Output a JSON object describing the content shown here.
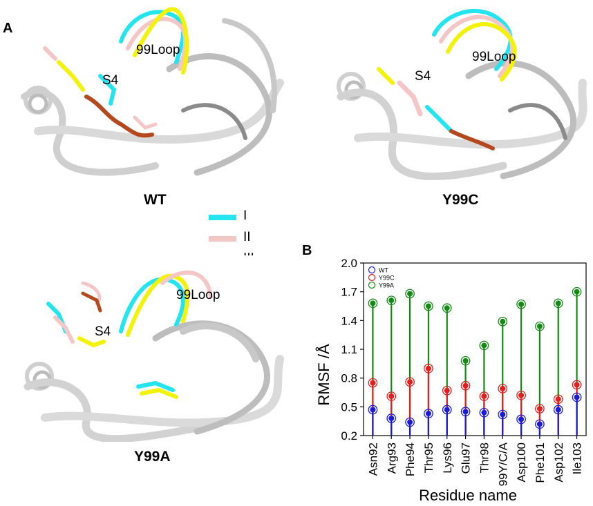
{
  "panels": {
    "a_letter": "A",
    "b_letter": "B"
  },
  "structures": [
    {
      "caption": "WT",
      "s4_label": "S4",
      "loop_label": "99Loop"
    },
    {
      "caption": "Y99C",
      "s4_label": "S4",
      "loop_label": "99Loop"
    },
    {
      "caption": "Y99A",
      "s4_label": "S4",
      "loop_label": "99Loop"
    }
  ],
  "structure_legend": [
    {
      "label": "I",
      "color": "#22e5ef"
    },
    {
      "label": "II",
      "color": "#f5c6c6"
    },
    {
      "label": "III",
      "color": "#f2f20a"
    }
  ],
  "colors": {
    "ribbon": "#d8d8d8",
    "ribbon_dark": "#8a8a8a",
    "ligand": "#b5481c",
    "nitrogen": "#1e2cd6",
    "oxygen": "#d61e1e"
  },
  "chart_data": {
    "type": "scatter",
    "style": "lollipop",
    "title": "",
    "xlabel": "Residue name",
    "ylabel": "RMSF /Å",
    "ylim": [
      0.2,
      2.0
    ],
    "yticks": [
      "0.2",
      "0.5",
      "0.8",
      "1.1",
      "1.4",
      "1.7",
      "2.0"
    ],
    "categories": [
      "Asn92",
      "Arg93",
      "Phe94",
      "Thr95",
      "Lys96",
      "Glu97",
      "Thr98",
      "99Y/C/A",
      "Asp100",
      "Phe101",
      "Asp102",
      "Ile103"
    ],
    "series": [
      {
        "name": "WT",
        "color": "#1a1adc",
        "values": [
          0.47,
          0.38,
          0.34,
          0.43,
          0.47,
          0.45,
          0.44,
          0.42,
          0.37,
          0.32,
          0.47,
          0.6
        ]
      },
      {
        "name": "Y99C",
        "color": "#e81c1c",
        "values": [
          0.75,
          0.61,
          0.76,
          0.9,
          0.67,
          0.72,
          0.61,
          0.69,
          0.62,
          0.48,
          0.58,
          0.73
        ]
      },
      {
        "name": "Y99A",
        "color": "#138a13",
        "values": [
          1.58,
          1.61,
          1.68,
          1.55,
          1.53,
          0.98,
          1.14,
          1.39,
          1.57,
          1.34,
          1.58,
          1.7
        ]
      }
    ],
    "legend_position": "top-left",
    "grid": false
  }
}
